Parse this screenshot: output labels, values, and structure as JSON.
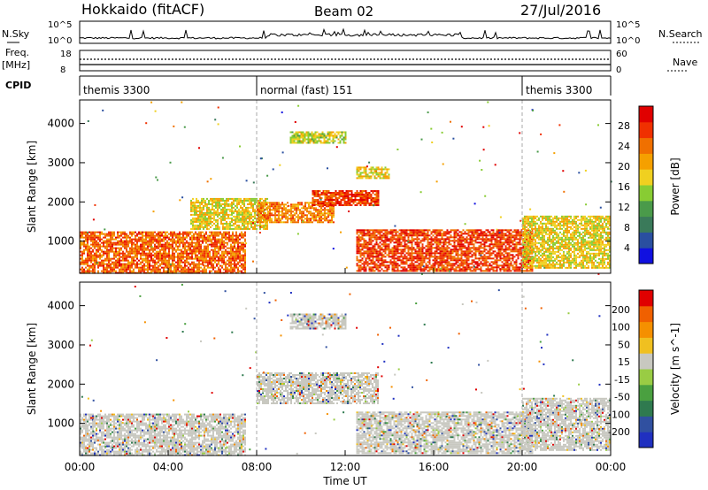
{
  "header": {
    "station": "Hokkaido (fitACF)",
    "beam": "Beam 02",
    "date": "27/Jul/2016"
  },
  "left_labels": {
    "nsky": "N.Sky",
    "freq": "Freq.",
    "mhz": "[MHz]",
    "cpid": "CPID"
  },
  "right_labels": {
    "nsearch": "N.Search",
    "nave": "Nave"
  },
  "nsky_ticks": {
    "left_top": "10^5",
    "left_bottom": "10^0",
    "right_top": "10^5",
    "right_bottom": "10^0"
  },
  "freq_ticks": {
    "left_top": "18",
    "left_bottom": "8",
    "right_top": "60",
    "right_bottom": "0"
  },
  "cpid_segments": [
    {
      "label": "themis 3300",
      "start_h": 0,
      "end_h": 8
    },
    {
      "label": "normal (fast) 151",
      "start_h": 8,
      "end_h": 20
    },
    {
      "label": "themis 3300",
      "start_h": 20,
      "end_h": 24
    }
  ],
  "x_axis": {
    "title": "Time UT",
    "ticks": [
      "00:00",
      "04:00",
      "08:00",
      "12:00",
      "16:00",
      "20:00",
      "00:00"
    ]
  },
  "power_panel": {
    "ylabel": "Slant Range [km]",
    "yticks": [
      "1000",
      "2000",
      "3000",
      "4000"
    ],
    "colorbar_label": "Power [dB]",
    "colorbar_ticks": [
      "4",
      "8",
      "12",
      "16",
      "20",
      "24",
      "28"
    ],
    "colors": [
      "#1010e0",
      "#2a4fa0",
      "#3a7a5a",
      "#4a9a4a",
      "#88cc33",
      "#f0d020",
      "#f5a000",
      "#f07000",
      "#f03000",
      "#e00000"
    ]
  },
  "velocity_panel": {
    "ylabel": "Slant Range [km]",
    "yticks": [
      "1000",
      "2000",
      "3000",
      "4000"
    ],
    "colorbar_label": "Velocity [m s^-1]",
    "colorbar_ticks": [
      "200",
      "100",
      "50",
      "15",
      "-15",
      "-50",
      "-100",
      "-200"
    ],
    "colors": [
      "#2030c0",
      "#3050a0",
      "#2f7a4f",
      "#4aa040",
      "#99cc44",
      "#c8c8c0",
      "#f0c020",
      "#f59000",
      "#f06000",
      "#e00000"
    ]
  },
  "chart_data": [
    {
      "type": "heatmap",
      "title": "Power",
      "xlabel": "Time UT",
      "ylabel": "Slant Range [km]",
      "xlim": [
        0,
        24
      ],
      "ylim": [
        180,
        4600
      ],
      "colorbar": {
        "label": "Power [dB]",
        "range": [
          0,
          32
        ],
        "ticks": [
          4,
          8,
          12,
          16,
          20,
          24,
          28
        ]
      },
      "regions": [
        {
          "x": [
            0.0,
            7.5
          ],
          "y": [
            200,
            1250
          ],
          "value": 26
        },
        {
          "x": [
            5.0,
            8.5
          ],
          "y": [
            1300,
            2100
          ],
          "value": 18
        },
        {
          "x": [
            8.0,
            11.5
          ],
          "y": [
            1500,
            2000
          ],
          "value": 24
        },
        {
          "x": [
            10.5,
            13.5
          ],
          "y": [
            1900,
            2300
          ],
          "value": 28
        },
        {
          "x": [
            12.5,
            14.0
          ],
          "y": [
            2600,
            2900
          ],
          "value": 18
        },
        {
          "x": [
            9.5,
            12.0
          ],
          "y": [
            3500,
            3800
          ],
          "value": 16
        },
        {
          "x": [
            12.5,
            20.5
          ],
          "y": [
            250,
            1300
          ],
          "value": 28
        },
        {
          "x": [
            20.0,
            24.0
          ],
          "y": [
            300,
            1650
          ],
          "value": 18
        }
      ]
    },
    {
      "type": "heatmap",
      "title": "Velocity",
      "xlabel": "Time UT",
      "ylabel": "Slant Range [km]",
      "xlim": [
        0,
        24
      ],
      "ylim": [
        180,
        4600
      ],
      "colorbar": {
        "label": "Velocity [m s^-1]",
        "range": [
          -250,
          250
        ],
        "ticks": [
          200,
          100,
          50,
          15,
          -15,
          -50,
          -100,
          -200
        ]
      },
      "regions": [
        {
          "x": [
            0.0,
            7.5
          ],
          "y": [
            200,
            1250
          ],
          "value": 0
        },
        {
          "x": [
            8.0,
            13.5
          ],
          "y": [
            1500,
            2300
          ],
          "value": 0
        },
        {
          "x": [
            9.5,
            12.0
          ],
          "y": [
            3400,
            3800
          ],
          "value": 0
        },
        {
          "x": [
            12.5,
            20.5
          ],
          "y": [
            250,
            1300
          ],
          "value": -20
        },
        {
          "x": [
            20.0,
            24.0
          ],
          "y": [
            300,
            1650
          ],
          "value": 0
        }
      ]
    }
  ]
}
